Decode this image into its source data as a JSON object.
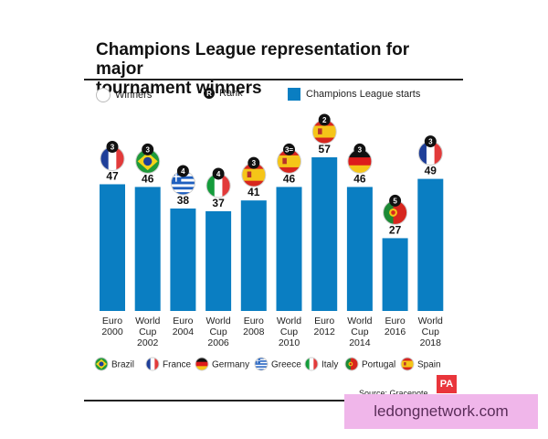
{
  "chart_data": {
    "type": "bar",
    "title": "Champions League representation for major tournament winners",
    "title_lines": [
      "Champions League representation for major",
      "tournament winners"
    ],
    "legend": {
      "winners": "Winners",
      "rank_symbol": "R",
      "rank": "Rank",
      "starts": "Champions League starts"
    },
    "categories": [
      [
        "Euro",
        "2000"
      ],
      [
        "World",
        "Cup",
        "2002"
      ],
      [
        "Euro",
        "2004"
      ],
      [
        "World",
        "Cup",
        "2006"
      ],
      [
        "Euro",
        "2008"
      ],
      [
        "World",
        "Cup",
        "2010"
      ],
      [
        "Euro",
        "2012"
      ],
      [
        "World",
        "Cup",
        "2014"
      ],
      [
        "Euro",
        "2016"
      ],
      [
        "World",
        "Cup",
        "2018"
      ]
    ],
    "values": [
      47,
      46,
      38,
      37,
      41,
      46,
      57,
      46,
      27,
      49
    ],
    "winners": [
      "France",
      "Brazil",
      "Greece",
      "Italy",
      "Spain",
      "Spain",
      "Spain",
      "Germany",
      "Portugal",
      "France"
    ],
    "ranks": [
      "3",
      "3",
      "4",
      "4",
      "3",
      "3=",
      "2",
      "3",
      "5",
      "3"
    ],
    "ylim": [
      0,
      57
    ],
    "bar_color": "#0a7ec2",
    "country_legend": [
      "Brazil",
      "France",
      "Germany",
      "Greece",
      "Italy",
      "Portugal",
      "Spain"
    ],
    "source": "Source: Gracenote"
  },
  "branding": {
    "logo": "PA",
    "watermark": "ledongnetwork.com"
  }
}
